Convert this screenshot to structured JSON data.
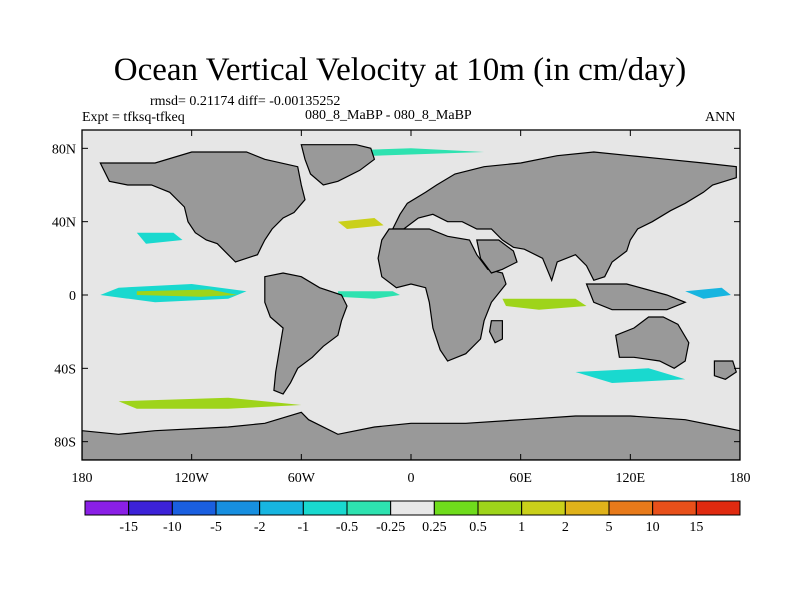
{
  "title": "Ocean Vertical Velocity at 10m (in cm/day)",
  "stats_line": "rmsd= 0.21174  diff= -0.00135252",
  "expt_line": "Expt = tfksq-tfkeq",
  "subtitle": "080_8_MaBP - 080_8_MaBP",
  "season": "ANN",
  "chart_data": {
    "type": "heatmap",
    "map_projection": "cylindrical equidistant",
    "x_range": [
      -180,
      180
    ],
    "y_range": [
      -90,
      90
    ],
    "x_ticks": [
      {
        "value": -180,
        "label": "180"
      },
      {
        "value": -120,
        "label": "120W"
      },
      {
        "value": -60,
        "label": "60W"
      },
      {
        "value": 0,
        "label": "0"
      },
      {
        "value": 60,
        "label": "60E"
      },
      {
        "value": 120,
        "label": "120E"
      },
      {
        "value": 180,
        "label": "180"
      }
    ],
    "y_ticks": [
      {
        "value": 80,
        "label": "80N"
      },
      {
        "value": 40,
        "label": "40N"
      },
      {
        "value": 0,
        "label": "0"
      },
      {
        "value": -40,
        "label": "40S"
      },
      {
        "value": -80,
        "label": "80S"
      }
    ],
    "land_color": "#999999",
    "background_color": "#e6e6e6",
    "colorbar": {
      "labels": [
        "-15",
        "-10",
        "-5",
        "-2",
        "-1",
        "-0.5",
        "-0.25",
        "0.25",
        "0.5",
        "1",
        "2",
        "5",
        "10",
        "15"
      ],
      "colors": [
        "#8a1fe6",
        "#3c22d8",
        "#1a5fe0",
        "#178fe0",
        "#17b5e0",
        "#19d9cf",
        "#2ee2b0",
        "#e8e8e8",
        "#6fdc1c",
        "#9ed41a",
        "#cad01a",
        "#e0b21a",
        "#e87a1a",
        "#e8501a",
        "#e02a10"
      ]
    },
    "land_masses": [
      {
        "name": "North America",
        "poly": [
          [
            -170,
            72
          ],
          [
            -140,
            72
          ],
          [
            -120,
            78
          ],
          [
            -90,
            78
          ],
          [
            -80,
            74
          ],
          [
            -62,
            70
          ],
          [
            -60,
            60
          ],
          [
            -58,
            52
          ],
          [
            -64,
            45
          ],
          [
            -70,
            42
          ],
          [
            -76,
            36
          ],
          [
            -80,
            30
          ],
          [
            -82,
            26
          ],
          [
            -84,
            22
          ],
          [
            -90,
            20
          ],
          [
            -96,
            18
          ],
          [
            -100,
            22
          ],
          [
            -106,
            28
          ],
          [
            -112,
            30
          ],
          [
            -118,
            34
          ],
          [
            -122,
            40
          ],
          [
            -124,
            48
          ],
          [
            -132,
            56
          ],
          [
            -142,
            60
          ],
          [
            -155,
            60
          ],
          [
            -165,
            62
          ]
        ]
      },
      {
        "name": "Greenland",
        "poly": [
          [
            -60,
            82
          ],
          [
            -30,
            82
          ],
          [
            -22,
            80
          ],
          [
            -20,
            74
          ],
          [
            -28,
            68
          ],
          [
            -40,
            62
          ],
          [
            -48,
            60
          ],
          [
            -55,
            66
          ],
          [
            -58,
            74
          ]
        ]
      },
      {
        "name": "South America",
        "poly": [
          [
            -80,
            10
          ],
          [
            -70,
            12
          ],
          [
            -60,
            10
          ],
          [
            -50,
            4
          ],
          [
            -38,
            0
          ],
          [
            -35,
            -6
          ],
          [
            -38,
            -14
          ],
          [
            -40,
            -22
          ],
          [
            -48,
            -28
          ],
          [
            -54,
            -34
          ],
          [
            -62,
            -40
          ],
          [
            -66,
            -48
          ],
          [
            -70,
            -54
          ],
          [
            -75,
            -52
          ],
          [
            -74,
            -42
          ],
          [
            -72,
            -30
          ],
          [
            -70,
            -18
          ],
          [
            -77,
            -12
          ],
          [
            -80,
            -4
          ],
          [
            -80,
            4
          ]
        ]
      },
      {
        "name": "Eurasia",
        "poly": [
          [
            -10,
            36
          ],
          [
            -6,
            44
          ],
          [
            -2,
            50
          ],
          [
            8,
            56
          ],
          [
            14,
            60
          ],
          [
            24,
            66
          ],
          [
            40,
            70
          ],
          [
            60,
            72
          ],
          [
            80,
            76
          ],
          [
            100,
            78
          ],
          [
            120,
            76
          ],
          [
            140,
            74
          ],
          [
            160,
            72
          ],
          [
            178,
            70
          ],
          [
            178,
            64
          ],
          [
            165,
            60
          ],
          [
            160,
            56
          ],
          [
            150,
            50
          ],
          [
            142,
            46
          ],
          [
            132,
            40
          ],
          [
            124,
            36
          ],
          [
            120,
            30
          ],
          [
            118,
            24
          ],
          [
            110,
            18
          ],
          [
            106,
            10
          ],
          [
            100,
            8
          ],
          [
            96,
            16
          ],
          [
            90,
            22
          ],
          [
            80,
            18
          ],
          [
            77,
            8
          ],
          [
            72,
            20
          ],
          [
            62,
            25
          ],
          [
            56,
            26
          ],
          [
            50,
            30
          ],
          [
            44,
            36
          ],
          [
            36,
            36
          ],
          [
            28,
            40
          ],
          [
            20,
            40
          ],
          [
            12,
            44
          ],
          [
            4,
            42
          ],
          [
            -4,
            36
          ]
        ]
      },
      {
        "name": "Africa",
        "poly": [
          [
            -16,
            30
          ],
          [
            -12,
            36
          ],
          [
            0,
            36
          ],
          [
            10,
            36
          ],
          [
            20,
            32
          ],
          [
            32,
            30
          ],
          [
            36,
            22
          ],
          [
            42,
            14
          ],
          [
            50,
            12
          ],
          [
            52,
            6
          ],
          [
            44,
            -4
          ],
          [
            40,
            -14
          ],
          [
            38,
            -24
          ],
          [
            30,
            -32
          ],
          [
            20,
            -36
          ],
          [
            16,
            -30
          ],
          [
            12,
            -18
          ],
          [
            10,
            -4
          ],
          [
            8,
            4
          ],
          [
            0,
            6
          ],
          [
            -8,
            4
          ],
          [
            -16,
            10
          ],
          [
            -18,
            20
          ]
        ]
      },
      {
        "name": "Arabia",
        "poly": [
          [
            36,
            30
          ],
          [
            48,
            30
          ],
          [
            56,
            24
          ],
          [
            58,
            18
          ],
          [
            50,
            14
          ],
          [
            44,
            12
          ],
          [
            38,
            20
          ]
        ]
      },
      {
        "name": "Madagascar",
        "poly": [
          [
            44,
            -14
          ],
          [
            50,
            -14
          ],
          [
            50,
            -24
          ],
          [
            46,
            -26
          ],
          [
            43,
            -20
          ]
        ]
      },
      {
        "name": "Maritime Continent",
        "poly": [
          [
            96,
            6
          ],
          [
            118,
            6
          ],
          [
            140,
            0
          ],
          [
            150,
            -4
          ],
          [
            140,
            -8
          ],
          [
            110,
            -8
          ],
          [
            100,
            -4
          ]
        ]
      },
      {
        "name": "Australia",
        "poly": [
          [
            112,
            -22
          ],
          [
            122,
            -18
          ],
          [
            130,
            -12
          ],
          [
            138,
            -12
          ],
          [
            146,
            -16
          ],
          [
            152,
            -26
          ],
          [
            150,
            -36
          ],
          [
            144,
            -40
          ],
          [
            136,
            -36
          ],
          [
            122,
            -34
          ],
          [
            114,
            -34
          ]
        ]
      },
      {
        "name": "New Zealand",
        "poly": [
          [
            166,
            -36
          ],
          [
            176,
            -36
          ],
          [
            178,
            -42
          ],
          [
            172,
            -46
          ],
          [
            166,
            -44
          ]
        ]
      },
      {
        "name": "Antarctica",
        "poly": [
          [
            -180,
            -74
          ],
          [
            -160,
            -76
          ],
          [
            -140,
            -74
          ],
          [
            -100,
            -72
          ],
          [
            -80,
            -70
          ],
          [
            -60,
            -64
          ],
          [
            -56,
            -68
          ],
          [
            -40,
            -76
          ],
          [
            -20,
            -72
          ],
          [
            0,
            -70
          ],
          [
            30,
            -70
          ],
          [
            60,
            -68
          ],
          [
            90,
            -66
          ],
          [
            120,
            -66
          ],
          [
            150,
            -68
          ],
          [
            170,
            -72
          ],
          [
            180,
            -74
          ],
          [
            180,
            -90
          ],
          [
            -180,
            -90
          ]
        ]
      }
    ],
    "anomaly_regions": [
      {
        "name": "equatorial Pacific upwelling",
        "value_class": "-1",
        "poly": [
          [
            -160,
            4
          ],
          [
            -120,
            6
          ],
          [
            -90,
            2
          ],
          [
            -100,
            -2
          ],
          [
            -140,
            -4
          ],
          [
            -170,
            0
          ]
        ]
      },
      {
        "name": "equatorial Pacific core",
        "value_class": "0.5",
        "poly": [
          [
            -150,
            2
          ],
          [
            -110,
            3
          ],
          [
            -95,
            0
          ],
          [
            -115,
            -1
          ],
          [
            -150,
            0
          ]
        ]
      },
      {
        "name": "equatorial Atlantic",
        "value_class": "-0.5",
        "poly": [
          [
            -40,
            2
          ],
          [
            -10,
            2
          ],
          [
            -6,
            0
          ],
          [
            -20,
            -2
          ],
          [
            -40,
            -1
          ]
        ]
      },
      {
        "name": "Indian Ocean",
        "value_class": "0.5",
        "poly": [
          [
            50,
            -2
          ],
          [
            90,
            -2
          ],
          [
            96,
            -6
          ],
          [
            70,
            -8
          ],
          [
            52,
            -6
          ]
        ]
      },
      {
        "name": "west Pacific",
        "value_class": "-2",
        "poly": [
          [
            150,
            2
          ],
          [
            170,
            4
          ],
          [
            175,
            0
          ],
          [
            160,
            -2
          ]
        ]
      },
      {
        "name": "North Pacific",
        "value_class": "-1",
        "poly": [
          [
            -150,
            34
          ],
          [
            -130,
            34
          ],
          [
            -125,
            30
          ],
          [
            -145,
            28
          ]
        ]
      },
      {
        "name": "North Atlantic",
        "value_class": "1",
        "poly": [
          [
            -40,
            40
          ],
          [
            -20,
            42
          ],
          [
            -15,
            38
          ],
          [
            -35,
            36
          ]
        ]
      },
      {
        "name": "Southern Ocean",
        "value_class": "0.5",
        "poly": [
          [
            -160,
            -58
          ],
          [
            -100,
            -56
          ],
          [
            -60,
            -60
          ],
          [
            -100,
            -62
          ],
          [
            -150,
            -62
          ]
        ]
      },
      {
        "name": "south Indian",
        "value_class": "-1",
        "poly": [
          [
            90,
            -42
          ],
          [
            130,
            -40
          ],
          [
            150,
            -46
          ],
          [
            110,
            -48
          ]
        ]
      },
      {
        "name": "Arctic",
        "value_class": "-0.5",
        "poly": [
          [
            -60,
            78
          ],
          [
            0,
            80
          ],
          [
            40,
            78
          ],
          [
            -20,
            76
          ]
        ]
      }
    ]
  }
}
